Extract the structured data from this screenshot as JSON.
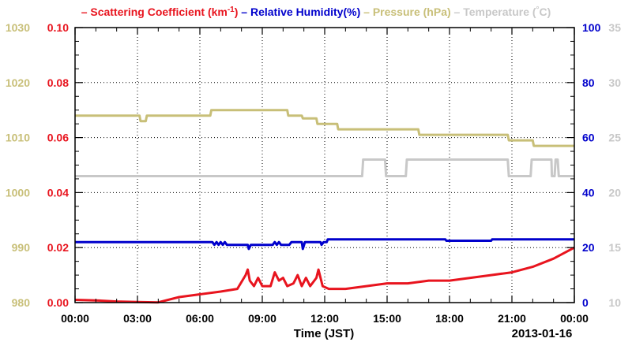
{
  "chart_data": {
    "type": "line",
    "x_unit": "Time (JST)",
    "xlabel": "Time (JST)",
    "date_label": "2013-01-16",
    "x_ticks": [
      "00:00",
      "03:00",
      "06:00",
      "09:00",
      "12:00",
      "15:00",
      "18:00",
      "21:00",
      "00:00"
    ],
    "xlim": [
      0,
      24
    ],
    "grid": true,
    "legend_position": "top",
    "legend": [
      {
        "dash": "–",
        "label": "Scattering Coefficient (km",
        "sup": "-1",
        "tail": ")",
        "color": "#e8141e"
      },
      {
        "dash": "–",
        "label": "Relative Humidity(%)",
        "sup": "",
        "tail": "",
        "color": "#0000cc"
      },
      {
        "dash": "–",
        "label": "Pressure (hPa)",
        "sup": "",
        "tail": "",
        "color": "#c8bf78"
      },
      {
        "dash": "–",
        "label": "Temperature (",
        "sup": "°",
        "tail": "C)",
        "color": "#c8c8c8"
      }
    ],
    "axes": {
      "pressure": {
        "side": "left-outer",
        "color": "#c8bf78",
        "ylim": [
          980,
          1030
        ],
        "ticks": [
          "980",
          "990",
          "1000",
          "1010",
          "1020",
          "1030"
        ]
      },
      "scattering": {
        "side": "left-inner",
        "color": "#e8141e",
        "ylim": [
          0,
          0.1
        ],
        "ticks": [
          "0.00",
          "0.02",
          "0.04",
          "0.06",
          "0.08",
          "0.10"
        ]
      },
      "humidity": {
        "side": "right-inner",
        "color": "#0000cc",
        "ylim": [
          0,
          100
        ],
        "ticks": [
          "0",
          "20",
          "40",
          "60",
          "80",
          "100"
        ]
      },
      "temperature": {
        "side": "right-outer",
        "color": "#c8c8c8",
        "ylim": [
          10,
          35
        ],
        "ticks": [
          "10",
          "15",
          "20",
          "25",
          "30",
          "35"
        ]
      }
    },
    "series": [
      {
        "key": "pressure",
        "axis": "pressure",
        "color": "#c8bf78",
        "points": [
          [
            0,
            1014
          ],
          [
            3.1,
            1014
          ],
          [
            3.15,
            1013
          ],
          [
            3.4,
            1013
          ],
          [
            3.45,
            1014
          ],
          [
            6.5,
            1014
          ],
          [
            6.55,
            1015
          ],
          [
            10.2,
            1015
          ],
          [
            10.25,
            1014
          ],
          [
            10.9,
            1014
          ],
          [
            10.95,
            1013.5
          ],
          [
            11.6,
            1013.5
          ],
          [
            11.65,
            1012.5
          ],
          [
            12.6,
            1012.5
          ],
          [
            12.65,
            1011.5
          ],
          [
            16.5,
            1011.5
          ],
          [
            16.55,
            1010.5
          ],
          [
            20.8,
            1010.5
          ],
          [
            20.85,
            1009.5
          ],
          [
            22,
            1009.5
          ],
          [
            22.05,
            1008.5
          ],
          [
            24,
            1008.5
          ]
        ]
      },
      {
        "key": "temperature",
        "axis": "temperature",
        "color": "#c8c8c8",
        "points": [
          [
            0,
            21.5
          ],
          [
            13.8,
            21.5
          ],
          [
            13.85,
            23
          ],
          [
            14.9,
            23
          ],
          [
            14.95,
            21.5
          ],
          [
            15.9,
            21.5
          ],
          [
            15.95,
            23
          ],
          [
            20.8,
            23
          ],
          [
            20.85,
            21.5
          ],
          [
            21.9,
            21.5
          ],
          [
            21.95,
            23
          ],
          [
            22.9,
            23
          ],
          [
            22.92,
            21.5
          ],
          [
            23.05,
            21.5
          ],
          [
            23.1,
            23
          ],
          [
            23.2,
            23
          ],
          [
            23.25,
            21.5
          ],
          [
            24,
            21.5
          ]
        ]
      },
      {
        "key": "humidity",
        "axis": "humidity",
        "color": "#0000cc",
        "points": [
          [
            0,
            22
          ],
          [
            6.6,
            22
          ],
          [
            6.7,
            21
          ],
          [
            6.8,
            22
          ],
          [
            6.9,
            21
          ],
          [
            7.0,
            22
          ],
          [
            7.1,
            21
          ],
          [
            7.2,
            22
          ],
          [
            7.3,
            21
          ],
          [
            7.4,
            21
          ],
          [
            8.3,
            21
          ],
          [
            8.35,
            19.5
          ],
          [
            8.45,
            21
          ],
          [
            9.5,
            21
          ],
          [
            9.6,
            22
          ],
          [
            9.7,
            21
          ],
          [
            9.8,
            22
          ],
          [
            9.9,
            21
          ],
          [
            10.3,
            21
          ],
          [
            10.4,
            22
          ],
          [
            10.9,
            22
          ],
          [
            10.95,
            19.5
          ],
          [
            11.05,
            22
          ],
          [
            11.8,
            22
          ],
          [
            11.85,
            21
          ],
          [
            11.95,
            22
          ],
          [
            12.1,
            22
          ],
          [
            12.15,
            23
          ],
          [
            17.8,
            23
          ],
          [
            17.85,
            22.5
          ],
          [
            20,
            22.5
          ],
          [
            20.05,
            23
          ],
          [
            24,
            23
          ]
        ]
      },
      {
        "key": "scattering",
        "axis": "scattering",
        "color": "#e8141e",
        "points": [
          [
            0,
            0.001
          ],
          [
            1,
            0.0008
          ],
          [
            2,
            0.0004
          ],
          [
            3,
            0.0002
          ],
          [
            4,
            0.0001
          ],
          [
            5,
            0.002
          ],
          [
            6,
            0.003
          ],
          [
            7,
            0.004
          ],
          [
            7.8,
            0.005
          ],
          [
            8.2,
            0.01
          ],
          [
            8.3,
            0.012
          ],
          [
            8.4,
            0.008
          ],
          [
            8.6,
            0.006
          ],
          [
            8.8,
            0.009
          ],
          [
            9,
            0.006
          ],
          [
            9.4,
            0.006
          ],
          [
            9.6,
            0.011
          ],
          [
            9.8,
            0.008
          ],
          [
            10,
            0.009
          ],
          [
            10.2,
            0.006
          ],
          [
            10.5,
            0.007
          ],
          [
            10.7,
            0.01
          ],
          [
            10.9,
            0.006
          ],
          [
            11.1,
            0.009
          ],
          [
            11.3,
            0.006
          ],
          [
            11.6,
            0.009
          ],
          [
            11.7,
            0.012
          ],
          [
            11.9,
            0.006
          ],
          [
            12.2,
            0.005
          ],
          [
            13,
            0.005
          ],
          [
            14,
            0.006
          ],
          [
            15,
            0.007
          ],
          [
            16,
            0.007
          ],
          [
            17,
            0.008
          ],
          [
            18,
            0.008
          ],
          [
            19,
            0.009
          ],
          [
            20,
            0.01
          ],
          [
            21,
            0.011
          ],
          [
            22,
            0.013
          ],
          [
            23,
            0.016
          ],
          [
            24,
            0.02
          ]
        ]
      }
    ]
  }
}
